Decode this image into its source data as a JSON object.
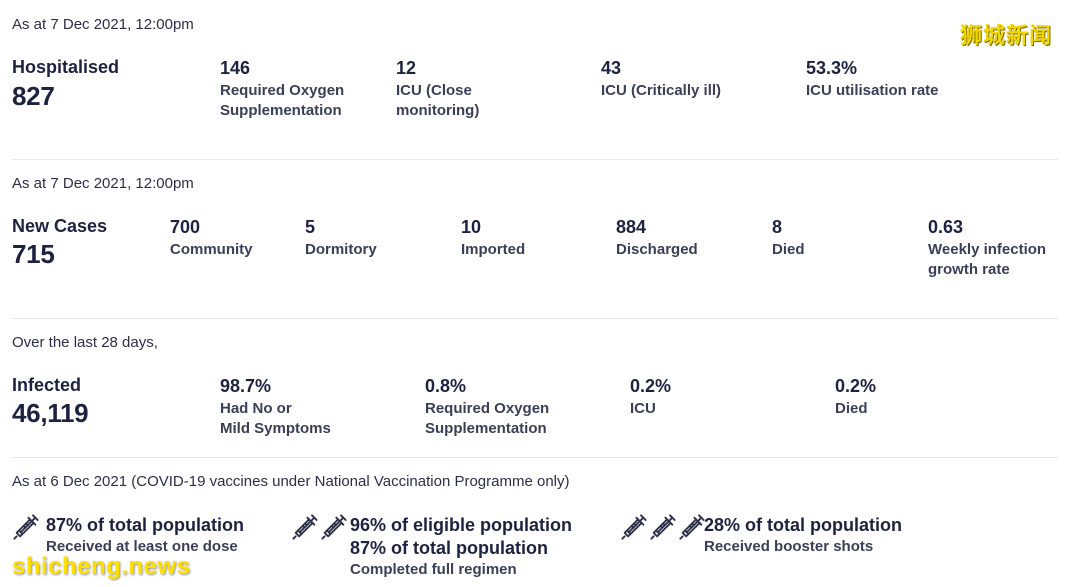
{
  "hospital": {
    "asof": "As at 7 Dec 2021, 12:00pm",
    "title": "Hospitalised",
    "total": "827",
    "stats": [
      {
        "value": "146",
        "label1": "Required Oxygen",
        "label2": "Supplementation"
      },
      {
        "value": "12",
        "label1": "ICU (Close",
        "label2": "monitoring)"
      },
      {
        "value": "43",
        "label1": "ICU (Critically ill)",
        "label2": ""
      },
      {
        "value": "53.3%",
        "label1": "ICU utilisation rate",
        "label2": ""
      }
    ]
  },
  "cases": {
    "asof": "As at 7 Dec 2021, 12:00pm",
    "title": "New Cases",
    "total": "715",
    "stats": [
      {
        "value": "700",
        "label1": "Community",
        "label2": ""
      },
      {
        "value": "5",
        "label1": "Dormitory",
        "label2": ""
      },
      {
        "value": "10",
        "label1": "Imported",
        "label2": ""
      },
      {
        "value": "884",
        "label1": "Discharged",
        "label2": ""
      },
      {
        "value": "8",
        "label1": "Died",
        "label2": ""
      },
      {
        "value": "0.63",
        "label1": "Weekly infection",
        "label2": "growth rate"
      }
    ]
  },
  "infected": {
    "asof": "Over the last 28 days,",
    "title": "Infected",
    "total": "46,119",
    "stats": [
      {
        "value": "98.7%",
        "label1": "Had No or",
        "label2": "Mild Symptoms"
      },
      {
        "value": "0.8%",
        "label1": "Required Oxygen",
        "label2": "Supplementation"
      },
      {
        "value": "0.2%",
        "label1": "ICU",
        "label2": ""
      },
      {
        "value": "0.2%",
        "label1": "Died",
        "label2": ""
      }
    ]
  },
  "vaccination": {
    "asof": "As at 6 Dec 2021 (COVID-19 vaccines under National Vaccination Programme only)",
    "items": [
      {
        "line1": "87% of total population",
        "line2": "",
        "sub": "Received at least one dose",
        "icon": "syringe-icon",
        "icon_count": 1
      },
      {
        "line1": "96% of eligible population",
        "line2": "87% of total population",
        "sub": "Completed full regimen",
        "icon": "syringe-icon",
        "icon_count": 2
      },
      {
        "line1": "28% of total population",
        "line2": "",
        "sub": "Received booster shots",
        "icon": "syringe-icon",
        "icon_count": 3
      }
    ]
  },
  "watermarks": {
    "top_right": "狮城新闻",
    "bottom_left": "shicheng.news"
  },
  "colors": {
    "text": "#1d2240",
    "label": "#3a3f58",
    "divider": "#e6e7ec",
    "watermark": "#f2d600"
  }
}
